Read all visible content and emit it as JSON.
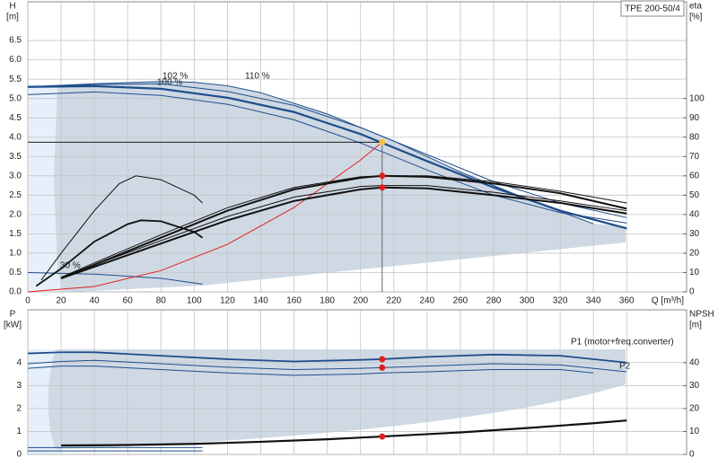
{
  "chart_data": [
    {
      "type": "line",
      "title": "TPE 200-50/4",
      "ylabel": "H",
      "yunit": "[m]",
      "y2label": "eta",
      "y2unit": "[%]",
      "xlabel": "Q [m³/h]",
      "xlim": [
        0,
        396
      ],
      "xticks": [
        0,
        20,
        40,
        60,
        80,
        100,
        120,
        140,
        160,
        180,
        200,
        220,
        240,
        260,
        280,
        300,
        320,
        340,
        360
      ],
      "ylim": [
        0,
        7.5
      ],
      "yticks": [
        {
          "value": 0,
          "label": "0.0"
        },
        0.5,
        {
          "value": 1,
          "label": "1.0"
        },
        1.5,
        {
          "value": 2,
          "label": "2.0"
        },
        2.5,
        {
          "value": 3,
          "label": "3.0"
        },
        3.5,
        {
          "value": 4,
          "label": "4.0"
        },
        4.5,
        {
          "value": 5,
          "label": "5.0"
        },
        5.5,
        {
          "value": 6,
          "label": "6.0"
        },
        6.5
      ],
      "y2lim": [
        0,
        150
      ],
      "y2ticks": [
        0,
        10,
        20,
        30,
        40,
        50,
        60,
        70,
        80,
        90,
        100
      ],
      "grid": true,
      "series": [
        {
          "name": "100 %",
          "color": "#1f4e8c",
          "x": [
            0,
            40,
            80,
            120,
            160,
            200,
            240,
            280,
            320,
            360
          ],
          "values": [
            5.3,
            5.32,
            5.25,
            5.02,
            4.65,
            4.08,
            3.38,
            2.7,
            2.1,
            1.64
          ]
        },
        {
          "name": "102 %",
          "color": "#1f4e8c",
          "x": [
            0,
            40,
            80,
            120,
            160,
            200,
            240,
            280,
            320,
            360
          ],
          "values": [
            5.3,
            5.36,
            5.38,
            5.18,
            4.82,
            4.25,
            3.55,
            2.85,
            2.3,
            1.92
          ]
        },
        {
          "name": "110 %",
          "color": "#1f4e8c",
          "x": [
            0,
            40,
            80,
            100,
            120,
            140,
            180,
            220,
            260,
            300,
            340
          ],
          "values": [
            5.3,
            5.38,
            5.44,
            5.42,
            5.33,
            5.15,
            4.6,
            3.9,
            3.1,
            2.4,
            1.76
          ]
        },
        {
          "color": "#1f4e8c",
          "x": [
            0,
            40,
            80,
            120,
            160,
            200,
            240,
            280,
            320,
            360
          ],
          "values": [
            5.1,
            5.17,
            5.08,
            4.85,
            4.45,
            3.85,
            3.15,
            2.5,
            2.05,
            1.78
          ]
        },
        {
          "name": "30 %",
          "color": "#1f4e8c",
          "x": [
            0,
            40,
            80,
            105
          ],
          "values": [
            0.5,
            0.46,
            0.35,
            0.2
          ]
        },
        {
          "color": "#e02020",
          "x": [
            0,
            40,
            80,
            120,
            160,
            200,
            213
          ],
          "values": [
            0,
            0.14,
            0.55,
            1.23,
            2.18,
            3.41,
            3.87
          ]
        },
        {
          "color": "#111",
          "axis": "y2",
          "x": [
            20,
            40,
            80,
            120,
            160,
            200,
            213,
            240,
            280,
            320,
            360
          ],
          "values": [
            7,
            13,
            25,
            37,
            47,
            53,
            54,
            53.5,
            50,
            46,
            40.5
          ]
        },
        {
          "color": "#111",
          "axis": "y2",
          "x": [
            20,
            40,
            80,
            120,
            160,
            200,
            213,
            240,
            280,
            320,
            360
          ],
          "values": [
            7.5,
            14,
            26.5,
            39,
            49,
            54.5,
            55,
            55,
            51.5,
            47,
            42
          ]
        },
        {
          "color": "#111",
          "axis": "y2",
          "x": [
            20,
            40,
            80,
            120,
            160,
            200,
            213,
            240,
            280,
            320,
            360
          ],
          "values": [
            7,
            14,
            28,
            42,
            53,
            59,
            60,
            59.5,
            56,
            51,
            43
          ]
        },
        {
          "color": "#111",
          "axis": "y2",
          "x": [
            20,
            40,
            80,
            120,
            160,
            200,
            213,
            240,
            280,
            320,
            360
          ],
          "values": [
            7.5,
            15,
            29.5,
            43.5,
            54,
            59.5,
            60,
            60,
            57,
            52,
            46
          ]
        },
        {
          "color": "#111",
          "axis": "y2",
          "x": [
            8,
            20,
            40,
            55,
            65,
            80,
            100,
            105
          ],
          "values": [
            6,
            20,
            42,
            56,
            60,
            58,
            50,
            46
          ]
        },
        {
          "color": "#111",
          "axis": "y2",
          "x": [
            5,
            20,
            40,
            60,
            68,
            80,
            100,
            105
          ],
          "values": [
            3,
            12,
            26,
            35,
            37,
            36.5,
            31,
            28
          ]
        }
      ],
      "points": [
        {
          "x": 213,
          "y": 3.87,
          "color": "#f5c242"
        },
        {
          "x": 213,
          "y": 60,
          "axis": "y2",
          "color": "#e02020"
        },
        {
          "x": 213,
          "y": 54,
          "axis": "y2",
          "color": "#e02020"
        }
      ]
    },
    {
      "type": "line",
      "ylabel": "P",
      "yunit": "[kW]",
      "y2label": "NPSH",
      "y2unit": "[m]",
      "xlim": [
        0,
        396
      ],
      "xticks": [
        0,
        20,
        40,
        60,
        80,
        100,
        120,
        140,
        160,
        180,
        200,
        220,
        240,
        260,
        280,
        300,
        320,
        340,
        360
      ],
      "ylim": [
        0,
        6.3
      ],
      "yticks": [
        0,
        1,
        2,
        3,
        4
      ],
      "y2lim": [
        0,
        63
      ],
      "y2ticks": [
        0,
        10,
        20,
        30,
        40
      ],
      "grid": true,
      "series": [
        {
          "name": "P1 (motor+freq.converter)",
          "color": "#1f4e8c",
          "x": [
            0,
            20,
            40,
            80,
            120,
            160,
            200,
            213,
            240,
            280,
            320,
            360
          ],
          "values": [
            4.4,
            4.45,
            4.45,
            4.3,
            4.15,
            4.05,
            4.12,
            4.15,
            4.25,
            4.35,
            4.3,
            4.0
          ]
        },
        {
          "name": "P2",
          "color": "#1f4e8c",
          "x": [
            0,
            20,
            40,
            80,
            120,
            160,
            200,
            213,
            240,
            280,
            320,
            360
          ],
          "values": [
            3.95,
            4.05,
            4.1,
            3.95,
            3.8,
            3.7,
            3.75,
            3.78,
            3.85,
            3.95,
            3.9,
            3.6
          ]
        },
        {
          "color": "#1f4e8c",
          "x": [
            0,
            20,
            40,
            80,
            120,
            160,
            200,
            213,
            240,
            280,
            320,
            340
          ],
          "values": [
            3.75,
            3.85,
            3.85,
            3.7,
            3.55,
            3.45,
            3.5,
            3.55,
            3.6,
            3.7,
            3.7,
            3.55
          ]
        },
        {
          "color": "#1f4e8c",
          "x": [
            0,
            105
          ],
          "values": [
            0.3,
            0.3
          ]
        },
        {
          "color": "#1f4e8c",
          "x": [
            0,
            105
          ],
          "values": [
            0.15,
            0.15
          ]
        },
        {
          "color": "#111",
          "axis": "y2",
          "x": [
            20,
            60,
            100,
            140,
            180,
            213,
            260,
            300,
            340,
            360
          ],
          "values": [
            3.9,
            4.1,
            4.6,
            5.5,
            6.6,
            7.8,
            9.6,
            11.5,
            13.6,
            14.8
          ]
        }
      ],
      "points": [
        {
          "x": 213,
          "y": 4.15,
          "color": "#e02020"
        },
        {
          "x": 213,
          "y": 3.78,
          "color": "#e02020"
        },
        {
          "x": 213,
          "y": 7.8,
          "axis": "y2",
          "color": "#e02020"
        }
      ]
    }
  ]
}
